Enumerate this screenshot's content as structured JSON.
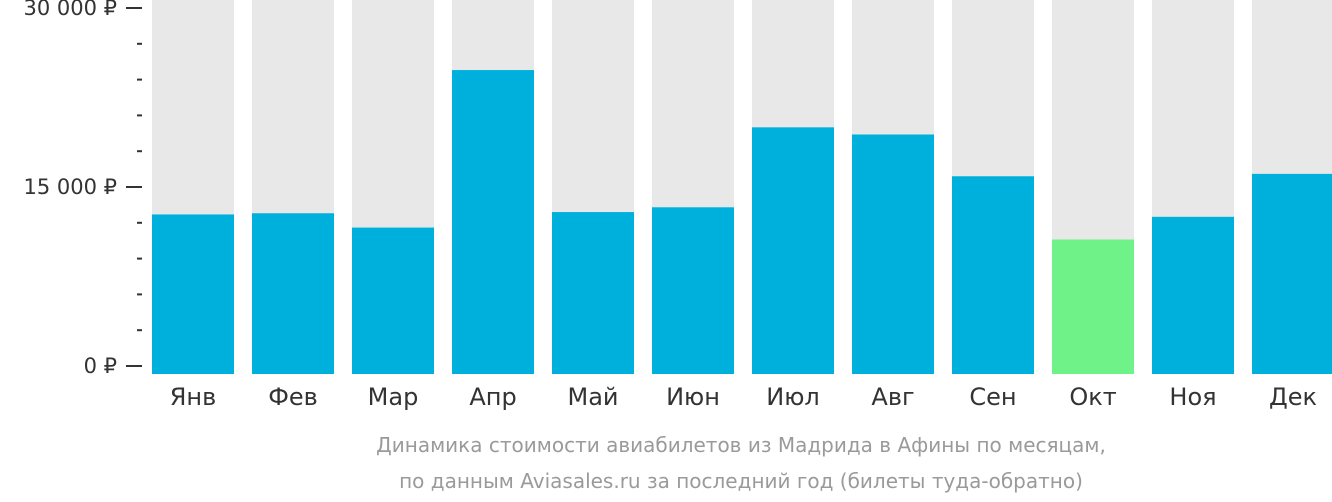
{
  "chart_data": {
    "type": "bar",
    "categories": [
      "Янв",
      "Фев",
      "Мар",
      "Апр",
      "Май",
      "Июн",
      "Июл",
      "Авг",
      "Сен",
      "Окт",
      "Ноя",
      "Дек"
    ],
    "values": [
      12700,
      12800,
      11600,
      24800,
      12900,
      13300,
      20000,
      19400,
      15900,
      10600,
      12500,
      16100
    ],
    "highlight_index": 9,
    "ylim": [
      0,
      30000
    ],
    "yticks": [
      0,
      15000,
      30000
    ],
    "ytick_labels": [
      "0 ₽",
      "15 000 ₽",
      "30 000 ₽"
    ],
    "minor_tick_step": 3000,
    "caption_lines": [
      "Динамика стоимости авиабилетов из Мадрида в Афины по месяцам,",
      "по данным Aviasales.ru за последний год (билеты туда-обратно)"
    ],
    "colors": {
      "bar": "#00b0dc",
      "highlight": "#6ff287",
      "track": "#e8e8e8",
      "axis": "#333333",
      "caption": "#9a9a9a"
    }
  }
}
